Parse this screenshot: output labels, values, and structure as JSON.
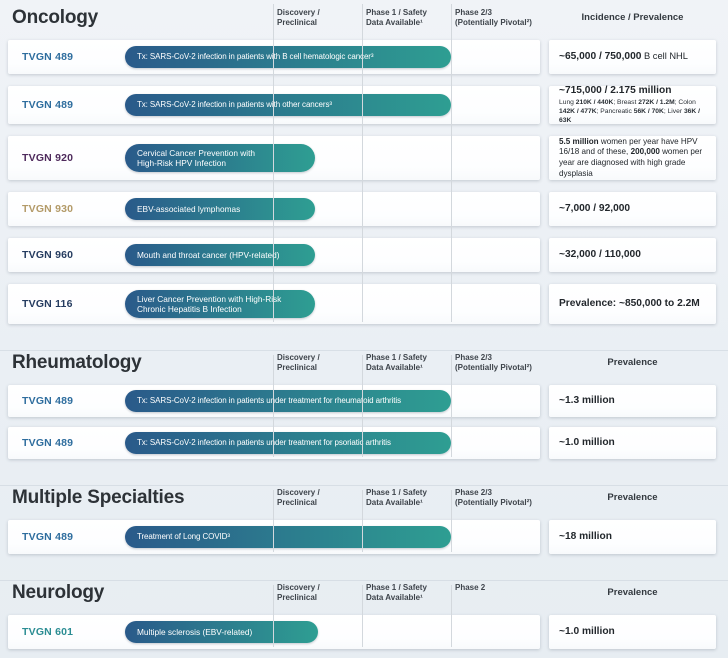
{
  "palette": {
    "pill_gradient_start": "#2a5a8a",
    "pill_gradient_end": "#2e9e92",
    "program_blue": "#2e6d9e",
    "program_purple": "#4e2a5c",
    "program_gold": "#b39a68",
    "program_navy": "#253c60",
    "program_teal": "#2b8d93",
    "background": "#eaeff4",
    "grid_line": "#d3d8dd"
  },
  "sections": [
    {
      "title": "Oncology",
      "columns": [
        "Discovery /\nPreclinical",
        "Phase 1 / Safety\nData Available¹",
        "Phase 2/3\n(Potentially Pivotal²)"
      ],
      "right_header": "Incidence / Prevalence",
      "rows": [
        {
          "program": "TVGN 489",
          "indication": "Tx: SARS-CoV-2 infection in patients with B cell hematologic cancer³",
          "prevalence": {
            "segments": [
              {
                "t": "~65,000 / 750,000",
                "b": true
              },
              {
                "t": " B cell NHL",
                "b": false
              }
            ]
          }
        },
        {
          "program": "TVGN 489",
          "indication": "Tx: SARS-CoV-2 infection in patients with other cancers³",
          "prevalence": {
            "segments": [
              {
                "t": "~715,000 / 2.175 million",
                "b": true
              }
            ],
            "sub_segments": [
              {
                "t": "Lung ",
                "b": false
              },
              {
                "t": "210K / 440K",
                "b": true
              },
              {
                "t": "; Breast ",
                "b": false
              },
              {
                "t": "272K / 1.2M",
                "b": true
              },
              {
                "t": "; Colon ",
                "b": false
              },
              {
                "t": "142K / 477K",
                "b": true
              },
              {
                "t": "; Pancreatic ",
                "b": false
              },
              {
                "t": "56K / 70K",
                "b": true
              },
              {
                "t": "; Liver ",
                "b": false
              },
              {
                "t": "36K / 63K",
                "b": true
              }
            ]
          }
        },
        {
          "program": "TVGN 920",
          "indication": "Cervical Cancer Prevention with\nHigh-Risk HPV Infection",
          "prevalence": {
            "para_segments": [
              {
                "t": "5.5 million",
                "b": true
              },
              {
                "t": " women per year have HPV 16/18 and of these, ",
                "b": false
              },
              {
                "t": "200,000",
                "b": true
              },
              {
                "t": " women per year are diagnosed with high grade dysplasia",
                "b": false
              }
            ]
          }
        },
        {
          "program": "TVGN 930",
          "indication": "EBV-associated lymphomas",
          "prevalence": {
            "segments": [
              {
                "t": "~7,000 / 92,000",
                "b": true
              }
            ]
          }
        },
        {
          "program": "TVGN 960",
          "indication": "Mouth and throat cancer (HPV-related)",
          "prevalence": {
            "segments": [
              {
                "t": "~32,000 / 110,000",
                "b": true
              }
            ]
          }
        },
        {
          "program": "TVGN 116",
          "indication": "Liver Cancer Prevention with High-Risk\nChronic Hepatitis B Infection",
          "prevalence": {
            "segments": [
              {
                "t": "Prevalence: ~850,000 to 2.2M",
                "b": true
              }
            ]
          }
        }
      ]
    },
    {
      "title": "Rheumatology",
      "columns": [
        "Discovery /\nPreclinical",
        "Phase 1 / Safety\nData Available¹",
        "Phase 2/3\n(Potentially Pivotal²)"
      ],
      "right_header": "Prevalence",
      "rows": [
        {
          "program": "TVGN 489",
          "indication": "Tx: SARS-CoV-2 infection in patients under treatment for rheumatoid arthritis",
          "prevalence": {
            "segments": [
              {
                "t": "~1.3 million",
                "b": true
              }
            ]
          }
        },
        {
          "program": "TVGN 489",
          "indication": "Tx: SARS-CoV-2 infection in patients under treatment for psoriatic arthritis",
          "prevalence": {
            "segments": [
              {
                "t": "~1.0 million",
                "b": true
              }
            ]
          }
        }
      ]
    },
    {
      "title": "Multiple Specialties",
      "columns": [
        "Discovery /\nPreclinical",
        "Phase 1 / Safety\nData Available¹",
        "Phase 2/3\n(Potentially Pivotal²)"
      ],
      "right_header": "Prevalence",
      "rows": [
        {
          "program": "TVGN 489",
          "indication": "Treatment of Long COVID³",
          "prevalence": {
            "segments": [
              {
                "t": "~18 million",
                "b": true
              }
            ]
          }
        }
      ]
    },
    {
      "title": "Neurology",
      "columns": [
        "Discovery /\nPreclinical",
        "Phase 1 / Safety\nData Available¹",
        "Phase 2"
      ],
      "right_header": "Prevalence",
      "rows": [
        {
          "program": "TVGN 601",
          "indication": "Multiple sclerosis (EBV-related)",
          "prevalence": {
            "segments": [
              {
                "t": "~1.0 million",
                "b": true
              }
            ]
          }
        }
      ]
    }
  ]
}
